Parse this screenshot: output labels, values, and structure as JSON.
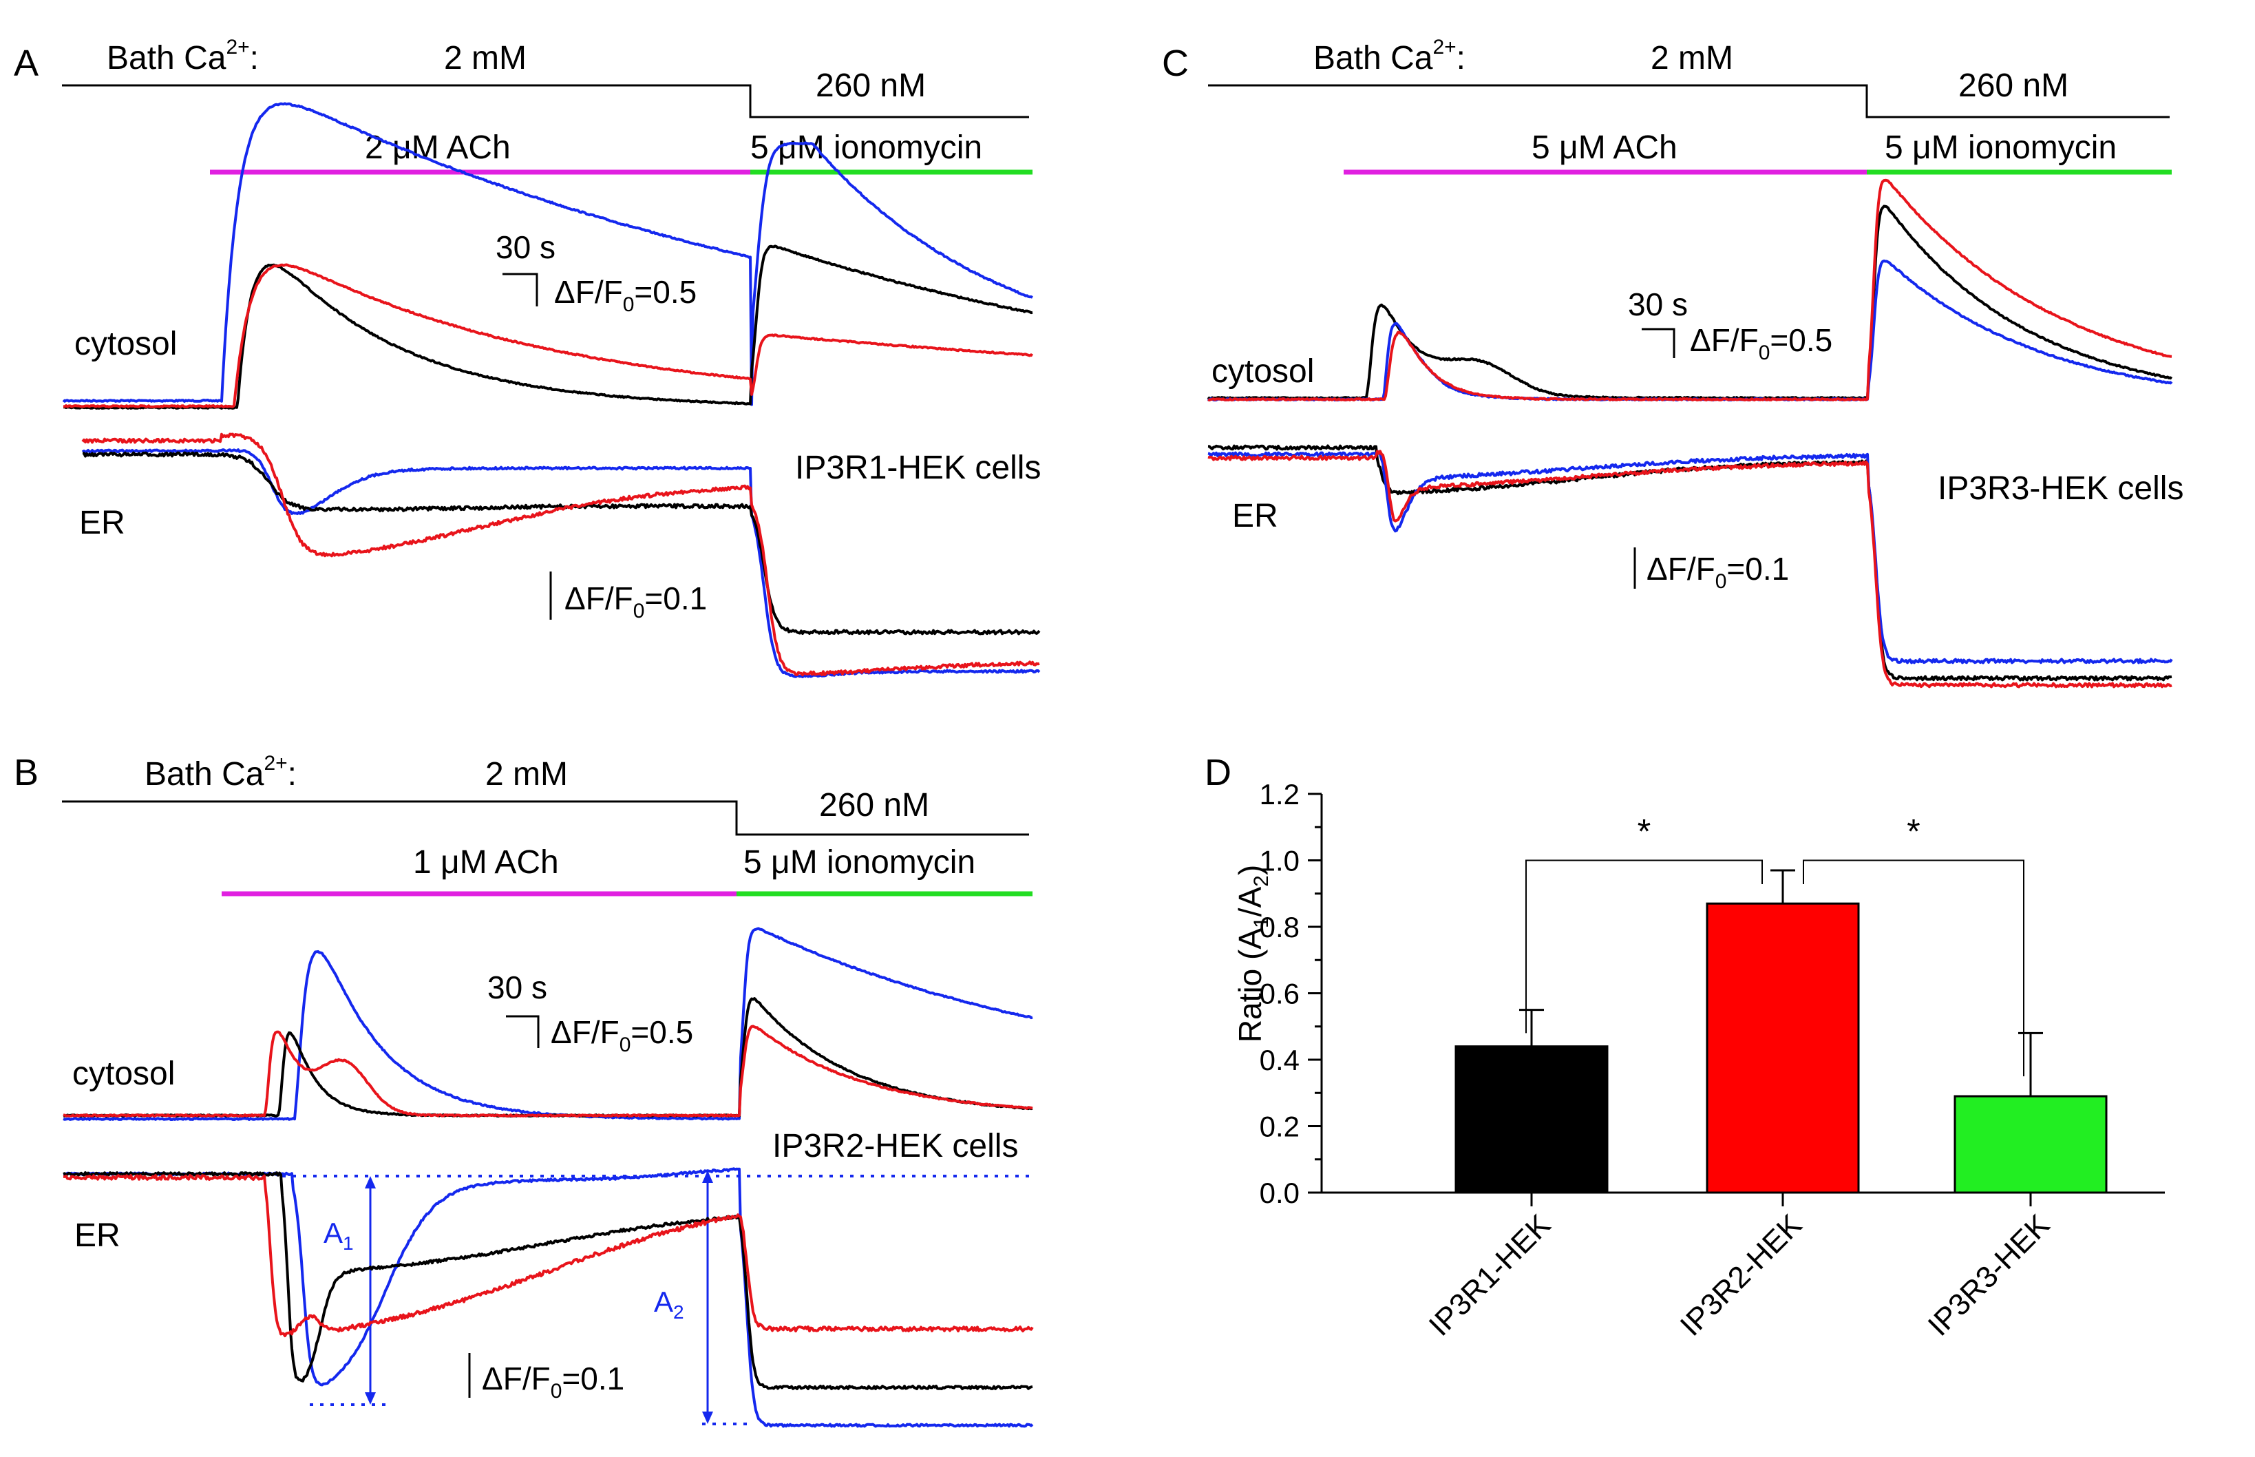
{
  "colors": {
    "black": "#000000",
    "red": "#e8141b",
    "blue": "#1428ee",
    "green": "#22dd22",
    "magenta": "#e020e0",
    "dotted_blue": "#1428ee"
  },
  "panel_a": {
    "letter": "A",
    "bath_label": "Bath Ca",
    "bath_sup": "2+",
    "bath_colon": ":",
    "conc_high": "2 mM",
    "conc_low": "260 nM",
    "agonist": "2 μM ACh",
    "ionomycin": "5 μM ionomycin",
    "cytosol": "cytosol",
    "er": "ER",
    "cells": "IP3R1-HEK cells",
    "scale_time": "30 s",
    "scale_cyt": "ΔF/F",
    "scale_cyt_sub": "0",
    "scale_cyt_val": "=0.5",
    "scale_er": "ΔF/F",
    "scale_er_sub": "0",
    "scale_er_val": "=0.1"
  },
  "panel_b": {
    "letter": "B",
    "bath_label": "Bath Ca",
    "bath_sup": "2+",
    "bath_colon": ":",
    "conc_high": "2 mM",
    "conc_low": "260 nM",
    "agonist": "1 μM ACh",
    "ionomycin": "5 μM ionomycin",
    "cytosol": "cytosol",
    "er": "ER",
    "cells": "IP3R2-HEK cells",
    "scale_time": "30 s",
    "scale_cyt": "ΔF/F",
    "scale_cyt_sub": "0",
    "scale_cyt_val": "=0.5",
    "scale_er": "ΔF/F",
    "scale_er_sub": "0",
    "scale_er_val": "=0.1",
    "a1": "A",
    "a1_sub": "1",
    "a2": "A",
    "a2_sub": "2"
  },
  "panel_c": {
    "letter": "C",
    "bath_label": "Bath Ca",
    "bath_sup": "2+",
    "bath_colon": ":",
    "conc_high": "2 mM",
    "conc_low": "260 nM",
    "agonist": "5 μM ACh",
    "ionomycin": "5 μM ionomycin",
    "cytosol": "cytosol",
    "er": "ER",
    "cells": "IP3R3-HEK cells",
    "scale_time": "30 s",
    "scale_cyt": "ΔF/F",
    "scale_cyt_sub": "0",
    "scale_cyt_val": "=0.5",
    "scale_er": "ΔF/F",
    "scale_er_sub": "0",
    "scale_er_val": "=0.1"
  },
  "chart_data": {
    "type": "bar",
    "panel": "D",
    "ylabel": "Ratio (A",
    "ylabel_sub1": "1",
    "ylabel_mid": "/A",
    "ylabel_sub2": "2",
    "ylabel_end": ")",
    "ylim": [
      0,
      1.2
    ],
    "yticks": [
      "0.0",
      "0.2",
      "0.4",
      "0.6",
      "0.8",
      "1.0",
      "1.2"
    ],
    "categories": [
      "IP3R1-HEK",
      "IP3R2-HEK",
      "IP3R3-HEK"
    ],
    "values": [
      0.44,
      0.87,
      0.29
    ],
    "errors": [
      0.11,
      0.1,
      0.19
    ],
    "bar_colors": [
      "#000000",
      "#ff0000",
      "#22ee22"
    ],
    "significance": [
      {
        "from": 0,
        "to": 1,
        "label": "*"
      },
      {
        "from": 1,
        "to": 2,
        "label": "*"
      }
    ]
  }
}
